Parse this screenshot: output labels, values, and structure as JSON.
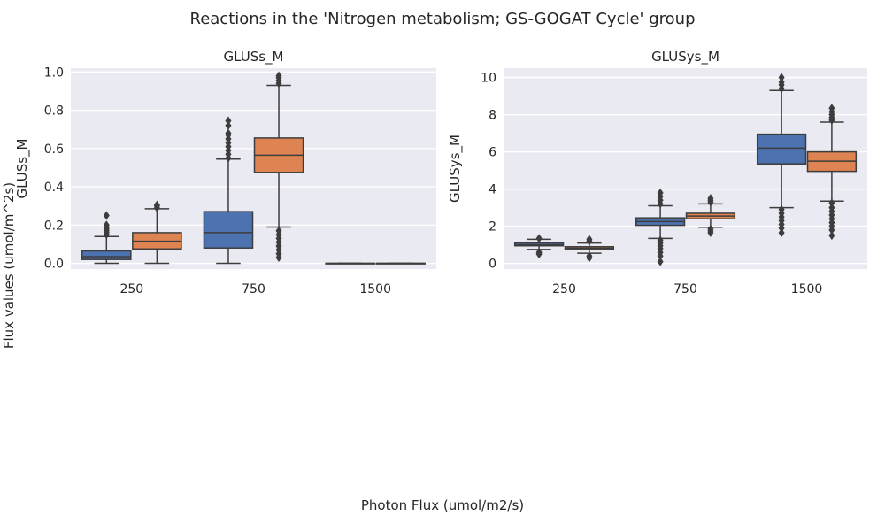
{
  "figure": {
    "title": "Reactions in the 'Nitrogen metabolism; GS-GOGAT Cycle' group",
    "xlabel": "Photon Flux (umol/m2/s)",
    "ylabel": "Flux values (umol/m^2s)"
  },
  "colors": {
    "series_a": "#4c72b0",
    "series_b": "#dd8452",
    "panel_bg": "#eaeaf2",
    "grid": "#ffffff",
    "line": "#3d3d3d"
  },
  "chart_data": [
    {
      "type": "box",
      "title": "GLUSs_M",
      "ylabel": "GLUSs_M",
      "categories": [
        "250",
        "750",
        "1500"
      ],
      "ylim": [
        -0.03,
        1.02
      ],
      "yticks": [
        0.0,
        0.2,
        0.4,
        0.6,
        0.8,
        1.0
      ],
      "ytick_labels": [
        "0.0",
        "0.2",
        "0.4",
        "0.6",
        "0.8",
        "1.0"
      ],
      "grid": true,
      "series": [
        {
          "boxes": [
            {
              "q1": 0.02,
              "median": 0.035,
              "q3": 0.065,
              "whislo": 0.0,
              "whishi": 0.14,
              "fliers": [
                0.15,
                0.16,
                0.17,
                0.18,
                0.19,
                0.2,
                0.25
              ]
            },
            {
              "q1": 0.08,
              "median": 0.16,
              "q3": 0.27,
              "whislo": 0.0,
              "whishi": 0.545,
              "fliers": [
                0.55,
                0.57,
                0.59,
                0.61,
                0.63,
                0.65,
                0.67,
                0.68,
                0.72,
                0.745
              ]
            },
            {
              "q1": 0.0,
              "median": 0.0,
              "q3": 0.0,
              "whislo": 0.0,
              "whishi": 0.0,
              "fliers": []
            }
          ]
        },
        {
          "boxes": [
            {
              "q1": 0.075,
              "median": 0.115,
              "q3": 0.16,
              "whislo": 0.0,
              "whishi": 0.285,
              "fliers": [
                0.29,
                0.3,
                0.305
              ]
            },
            {
              "q1": 0.475,
              "median": 0.565,
              "q3": 0.655,
              "whislo": 0.19,
              "whishi": 0.93,
              "fliers": [
                0.94,
                0.955,
                0.97,
                0.98,
                0.17,
                0.15,
                0.13,
                0.11,
                0.09,
                0.07,
                0.05,
                0.03
              ]
            },
            {
              "q1": 0.0,
              "median": 0.0,
              "q3": 0.0,
              "whislo": 0.0,
              "whishi": 0.0,
              "fliers": []
            }
          ]
        }
      ]
    },
    {
      "type": "box",
      "title": "GLUSys_M",
      "ylabel": "GLUSys_M",
      "categories": [
        "250",
        "750",
        "1500"
      ],
      "ylim": [
        -0.3,
        10.5
      ],
      "yticks": [
        0,
        2,
        4,
        6,
        8,
        10
      ],
      "ytick_labels": [
        "0",
        "2",
        "4",
        "6",
        "8",
        "10"
      ],
      "grid": true,
      "series": [
        {
          "boxes": [
            {
              "q1": 0.95,
              "median": 1.0,
              "q3": 1.1,
              "whislo": 0.75,
              "whishi": 1.3,
              "fliers": [
                1.35,
                0.6,
                0.5
              ]
            },
            {
              "q1": 2.05,
              "median": 2.25,
              "q3": 2.45,
              "whislo": 1.35,
              "whishi": 3.1,
              "fliers": [
                3.2,
                3.4,
                3.6,
                3.8,
                1.25,
                1.1,
                0.95,
                0.8,
                0.6,
                0.4,
                0.1
              ]
            },
            {
              "q1": 5.35,
              "median": 6.2,
              "q3": 6.95,
              "whislo": 3.0,
              "whishi": 9.3,
              "fliers": [
                9.4,
                9.6,
                9.75,
                10.0,
                2.9,
                2.7,
                2.5,
                2.3,
                2.1,
                1.9,
                1.65
              ]
            }
          ]
        },
        {
          "boxes": [
            {
              "q1": 0.75,
              "median": 0.82,
              "q3": 0.9,
              "whislo": 0.55,
              "whishi": 1.1,
              "fliers": [
                1.2,
                1.3,
                0.4,
                0.3
              ]
            },
            {
              "q1": 2.4,
              "median": 2.55,
              "q3": 2.7,
              "whislo": 1.95,
              "whishi": 3.2,
              "fliers": [
                3.3,
                3.4,
                3.5,
                1.85,
                1.75,
                1.65
              ]
            },
            {
              "q1": 4.95,
              "median": 5.5,
              "q3": 6.0,
              "whislo": 3.35,
              "whishi": 7.6,
              "fliers": [
                7.7,
                7.85,
                8.0,
                8.15,
                8.35,
                3.25,
                3.0,
                2.8,
                2.6,
                2.4,
                2.2,
                2.0,
                1.8,
                1.5
              ]
            }
          ]
        }
      ]
    }
  ]
}
